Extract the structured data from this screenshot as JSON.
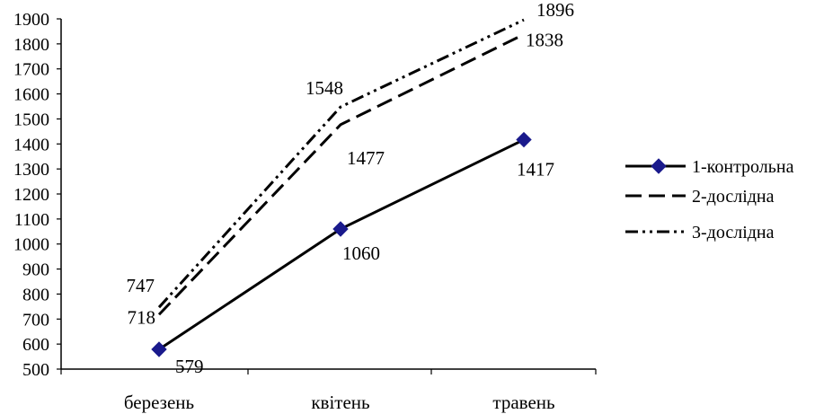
{
  "chart_data": {
    "type": "line",
    "categories": [
      "березень",
      "квітень",
      "травень"
    ],
    "ylim": [
      500,
      1900
    ],
    "y_ticks": [
      500,
      600,
      700,
      800,
      900,
      1000,
      1100,
      1200,
      1300,
      1400,
      1500,
      1600,
      1700,
      1800,
      1900
    ],
    "grid": false,
    "legend_position": "right",
    "series": [
      {
        "name": "1-контрольна",
        "values": [
          579,
          1060,
          1417
        ],
        "style": "solid",
        "marker": "diamond",
        "marker_color": "#1a1a8c",
        "color": "#000000"
      },
      {
        "name": "2-дослідна",
        "values": [
          718,
          1477,
          1838
        ],
        "style": "dashed",
        "color": "#000000"
      },
      {
        "name": "3-дослідна",
        "values": [
          747,
          1548,
          1896
        ],
        "style": "dash-dot-dot",
        "color": "#000000"
      }
    ]
  }
}
